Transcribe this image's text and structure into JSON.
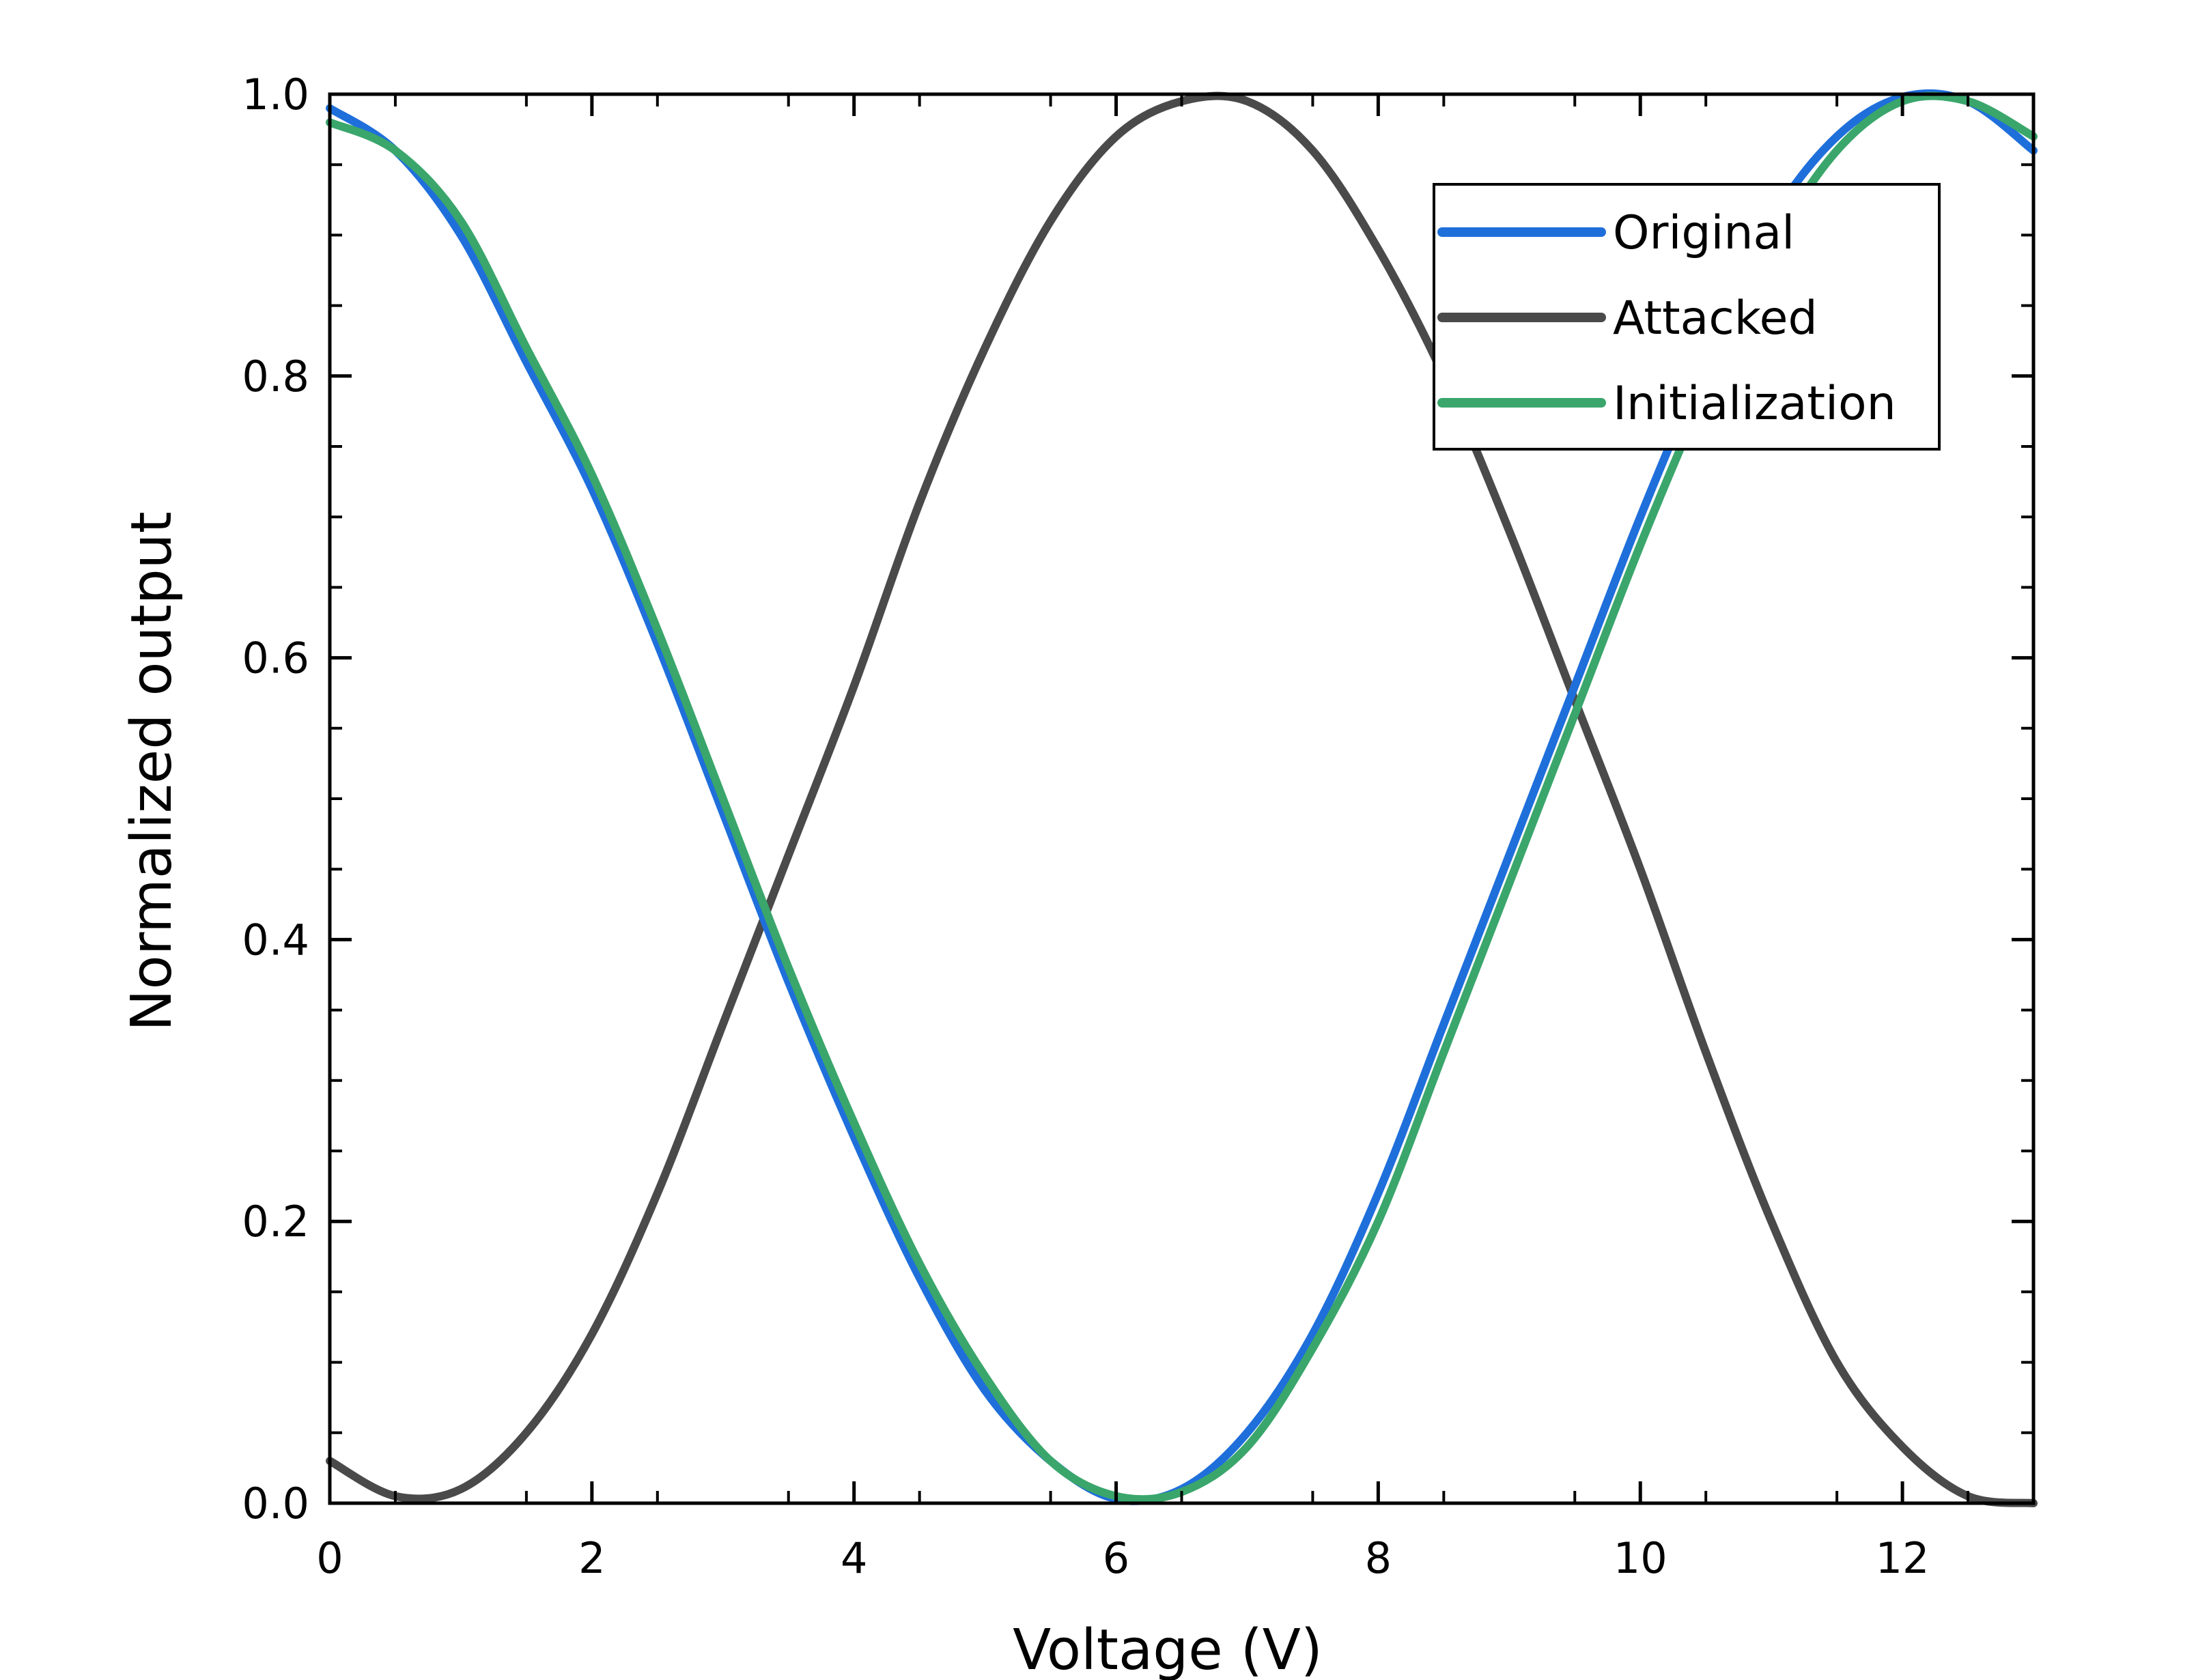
{
  "chart_data": {
    "type": "line",
    "title": "",
    "xlabel": "Voltage (V)",
    "ylabel": "Normalized output",
    "xlim": [
      0,
      13
    ],
    "ylim": [
      0,
      1.0
    ],
    "x_ticks": [
      0,
      2,
      4,
      6,
      8,
      10,
      12
    ],
    "x_tick_labels": [
      "0",
      "2",
      "4",
      "6",
      "8",
      "10",
      "12"
    ],
    "y_ticks": [
      0,
      0.2,
      0.4,
      0.6,
      0.8,
      1.0
    ],
    "y_tick_labels": [
      "0.0",
      "0.2",
      "0.4",
      "0.6",
      "0.8",
      "1.0"
    ],
    "grid": false,
    "legend_position": "top-right",
    "series": [
      {
        "name": "Original",
        "color": "#1f6fdb",
        "x": [
          0,
          0.5,
          1,
          1.5,
          2,
          2.5,
          3,
          3.5,
          4,
          4.5,
          5,
          5.5,
          6,
          6.5,
          7,
          7.5,
          8,
          8.5,
          9,
          9.5,
          10,
          10.5,
          11,
          11.5,
          12,
          12.5,
          13
        ],
        "y": [
          0.99,
          0.96,
          0.9,
          0.81,
          0.72,
          0.61,
          0.49,
          0.37,
          0.26,
          0.16,
          0.08,
          0.03,
          0.003,
          0.01,
          0.05,
          0.12,
          0.22,
          0.34,
          0.46,
          0.58,
          0.7,
          0.81,
          0.91,
          0.97,
          0.998,
          0.995,
          0.96
        ]
      },
      {
        "name": "Attacked",
        "color": "#4a4a4a",
        "x": [
          0,
          0.5,
          1,
          1.5,
          2,
          2.5,
          3,
          3.5,
          4,
          4.5,
          5,
          5.5,
          6,
          6.5,
          7,
          7.5,
          8,
          8.5,
          9,
          9.5,
          10,
          10.5,
          11,
          11.5,
          12,
          12.5,
          13
        ],
        "y": [
          0.03,
          0.005,
          0.01,
          0.05,
          0.12,
          0.22,
          0.34,
          0.46,
          0.58,
          0.71,
          0.82,
          0.91,
          0.97,
          0.995,
          0.995,
          0.96,
          0.89,
          0.8,
          0.69,
          0.57,
          0.45,
          0.32,
          0.2,
          0.1,
          0.04,
          0.005,
          0.0
        ]
      },
      {
        "name": "Initialization",
        "color": "#3aa66b",
        "x": [
          0,
          0.5,
          1,
          1.5,
          2,
          2.5,
          3,
          3.5,
          4,
          4.5,
          5,
          5.5,
          6,
          6.5,
          7,
          7.5,
          8,
          8.5,
          9,
          9.5,
          10,
          10.5,
          11,
          11.5,
          12,
          12.5,
          13
        ],
        "y": [
          0.98,
          0.96,
          0.91,
          0.82,
          0.73,
          0.62,
          0.5,
          0.38,
          0.27,
          0.17,
          0.09,
          0.03,
          0.005,
          0.008,
          0.04,
          0.11,
          0.2,
          0.32,
          0.44,
          0.56,
          0.68,
          0.79,
          0.89,
          0.96,
          0.995,
          0.995,
          0.97
        ]
      }
    ]
  }
}
